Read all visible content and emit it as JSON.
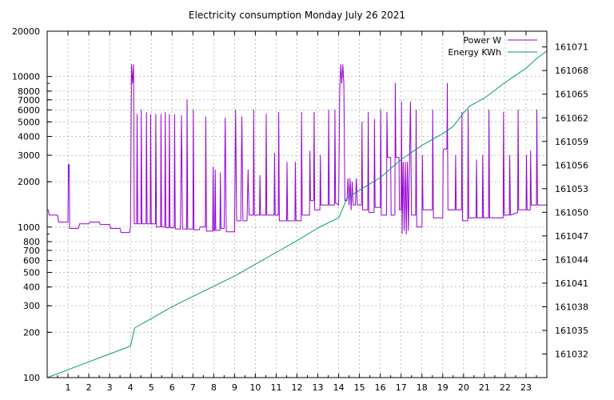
{
  "chart_data": {
    "type": "line",
    "title": "Electricity consumption Monday July 26 2021",
    "xlabel": "",
    "ylabel": "",
    "y2label": "",
    "xlim": [
      0,
      24
    ],
    "ylim": [
      100,
      20000
    ],
    "y_scale": "log",
    "y2lim": [
      161029,
      161073
    ],
    "grid": true,
    "legend_position": "top-right",
    "x_ticks": [
      "1",
      "2",
      "3",
      "4",
      "5",
      "6",
      "7",
      "8",
      "9",
      "10",
      "11",
      "12",
      "13",
      "14",
      "15",
      "16",
      "17",
      "18",
      "19",
      "20",
      "21",
      "22",
      "23"
    ],
    "y_ticks": [
      "100",
      "200",
      "300",
      "400",
      "500",
      "600",
      "700",
      "800",
      "1000",
      "2000",
      "3000",
      "4000",
      "5000",
      "6000",
      "7000",
      "8000",
      "10000",
      "20000"
    ],
    "y2_ticks": [
      "161032",
      "161035",
      "161038",
      "161041",
      "161044",
      "161047",
      "161050",
      "161053",
      "161056",
      "161059",
      "161062",
      "161065",
      "161068",
      "161071"
    ],
    "series": [
      {
        "name": "Power W",
        "color": "#9400d3",
        "axis": "left",
        "points": [
          [
            0.0,
            1300
          ],
          [
            0.05,
            1300
          ],
          [
            0.1,
            1200
          ],
          [
            0.5,
            1200
          ],
          [
            0.55,
            1080
          ],
          [
            1.0,
            1080
          ],
          [
            1.02,
            2600
          ],
          [
            1.06,
            2600
          ],
          [
            1.08,
            980
          ],
          [
            1.5,
            980
          ],
          [
            1.55,
            1050
          ],
          [
            2.0,
            1050
          ],
          [
            2.05,
            1080
          ],
          [
            2.5,
            1080
          ],
          [
            2.55,
            1040
          ],
          [
            3.0,
            1040
          ],
          [
            3.05,
            980
          ],
          [
            3.5,
            980
          ],
          [
            3.55,
            920
          ],
          [
            3.95,
            920
          ],
          [
            4.0,
            1000
          ],
          [
            4.05,
            12000
          ],
          [
            4.1,
            9000
          ],
          [
            4.15,
            12000
          ],
          [
            4.18,
            1050
          ],
          [
            4.3,
            1050
          ],
          [
            4.32,
            5600
          ],
          [
            4.35,
            1050
          ],
          [
            4.5,
            1050
          ],
          [
            4.52,
            6000
          ],
          [
            4.55,
            1050
          ],
          [
            4.75,
            1050
          ],
          [
            4.77,
            5800
          ],
          [
            4.8,
            1050
          ],
          [
            4.95,
            1050
          ],
          [
            4.97,
            5600
          ],
          [
            5.0,
            1050
          ],
          [
            5.2,
            1050
          ],
          [
            5.22,
            5600
          ],
          [
            5.25,
            1000
          ],
          [
            5.45,
            1000
          ],
          [
            5.47,
            5600
          ],
          [
            5.5,
            1000
          ],
          [
            5.65,
            1000
          ],
          [
            5.67,
            5800
          ],
          [
            5.7,
            990
          ],
          [
            5.85,
            990
          ],
          [
            5.87,
            5600
          ],
          [
            5.9,
            990
          ],
          [
            6.1,
            990
          ],
          [
            6.12,
            5600
          ],
          [
            6.15,
            970
          ],
          [
            6.4,
            970
          ],
          [
            6.45,
            5500
          ],
          [
            6.5,
            970
          ],
          [
            6.7,
            970
          ],
          [
            6.72,
            7000
          ],
          [
            6.75,
            970
          ],
          [
            7.0,
            970
          ],
          [
            7.02,
            6000
          ],
          [
            7.05,
            960
          ],
          [
            7.3,
            960
          ],
          [
            7.35,
            1000
          ],
          [
            7.6,
            1000
          ],
          [
            7.62,
            5400
          ],
          [
            7.65,
            940
          ],
          [
            7.95,
            940
          ],
          [
            7.97,
            2500
          ],
          [
            8.0,
            950
          ],
          [
            8.05,
            950
          ],
          [
            8.07,
            2400
          ],
          [
            8.1,
            950
          ],
          [
            8.3,
            950
          ],
          [
            8.32,
            2300
          ],
          [
            8.35,
            980
          ],
          [
            8.5,
            980
          ],
          [
            8.55,
            5300
          ],
          [
            8.6,
            930
          ],
          [
            9.0,
            930
          ],
          [
            9.05,
            6000
          ],
          [
            9.1,
            1100
          ],
          [
            9.3,
            1100
          ],
          [
            9.35,
            5400
          ],
          [
            9.4,
            1100
          ],
          [
            9.6,
            1100
          ],
          [
            9.65,
            2400
          ],
          [
            9.7,
            1200
          ],
          [
            9.9,
            1200
          ],
          [
            9.92,
            6000
          ],
          [
            9.95,
            1200
          ],
          [
            10.2,
            1200
          ],
          [
            10.22,
            2200
          ],
          [
            10.25,
            1200
          ],
          [
            10.5,
            1200
          ],
          [
            10.52,
            5600
          ],
          [
            10.55,
            1200
          ],
          [
            10.9,
            1200
          ],
          [
            10.92,
            3100
          ],
          [
            10.95,
            1200
          ],
          [
            11.1,
            1200
          ],
          [
            11.12,
            5800
          ],
          [
            11.15,
            1100
          ],
          [
            11.5,
            1100
          ],
          [
            11.52,
            2700
          ],
          [
            11.55,
            1100
          ],
          [
            11.9,
            1100
          ],
          [
            11.92,
            2700
          ],
          [
            11.95,
            1100
          ],
          [
            12.2,
            1100
          ],
          [
            12.22,
            5800
          ],
          [
            12.25,
            1200
          ],
          [
            12.6,
            1200
          ],
          [
            12.62,
            3200
          ],
          [
            12.65,
            1500
          ],
          [
            12.8,
            1500
          ],
          [
            12.82,
            5800
          ],
          [
            12.85,
            1300
          ],
          [
            13.1,
            1300
          ],
          [
            13.12,
            3000
          ],
          [
            13.15,
            1400
          ],
          [
            13.5,
            1400
          ],
          [
            13.52,
            6000
          ],
          [
            13.55,
            1400
          ],
          [
            13.8,
            1400
          ],
          [
            13.82,
            6000
          ],
          [
            13.85,
            1450
          ],
          [
            14.0,
            1400
          ],
          [
            14.05,
            8000
          ],
          [
            14.1,
            12000
          ],
          [
            14.15,
            9000
          ],
          [
            14.2,
            12000
          ],
          [
            14.25,
            9000
          ],
          [
            14.3,
            1500
          ],
          [
            14.4,
            1500
          ],
          [
            14.45,
            2100
          ],
          [
            14.5,
            1400
          ],
          [
            14.55,
            2100
          ],
          [
            14.6,
            1300
          ],
          [
            14.65,
            2000
          ],
          [
            14.7,
            1400
          ],
          [
            14.8,
            1400
          ],
          [
            14.85,
            2100
          ],
          [
            14.9,
            1400
          ],
          [
            15.1,
            1400
          ],
          [
            15.12,
            5000
          ],
          [
            15.15,
            1300
          ],
          [
            15.4,
            1300
          ],
          [
            15.42,
            5800
          ],
          [
            15.45,
            1250
          ],
          [
            15.7,
            1250
          ],
          [
            15.72,
            5200
          ],
          [
            15.75,
            1350
          ],
          [
            16.0,
            1350
          ],
          [
            16.02,
            6000
          ],
          [
            16.05,
            1200
          ],
          [
            16.3,
            1200
          ],
          [
            16.32,
            5800
          ],
          [
            16.35,
            2900
          ],
          [
            16.5,
            2900
          ],
          [
            16.52,
            1200
          ],
          [
            16.7,
            1200
          ],
          [
            16.72,
            9000
          ],
          [
            16.75,
            2900
          ],
          [
            16.9,
            2900
          ],
          [
            16.92,
            1300
          ],
          [
            17.0,
            1300
          ],
          [
            17.02,
            6800
          ],
          [
            17.05,
            900
          ],
          [
            17.1,
            2700
          ],
          [
            17.15,
            950
          ],
          [
            17.2,
            2700
          ],
          [
            17.25,
            900
          ],
          [
            17.3,
            2700
          ],
          [
            17.35,
            950
          ],
          [
            17.45,
            6800
          ],
          [
            17.5,
            1200
          ],
          [
            17.7,
            1200
          ],
          [
            17.72,
            6000
          ],
          [
            17.75,
            1000
          ],
          [
            18.0,
            1000
          ],
          [
            18.02,
            3000
          ],
          [
            18.05,
            1300
          ],
          [
            18.5,
            1300
          ],
          [
            18.52,
            6000
          ],
          [
            18.55,
            1150
          ],
          [
            19.0,
            1150
          ],
          [
            19.02,
            3200
          ],
          [
            19.05,
            3300
          ],
          [
            19.2,
            3300
          ],
          [
            19.22,
            9000
          ],
          [
            19.25,
            1300
          ],
          [
            19.6,
            1300
          ],
          [
            19.62,
            3000
          ],
          [
            19.65,
            1300
          ],
          [
            19.9,
            1300
          ],
          [
            19.92,
            5800
          ],
          [
            19.95,
            1100
          ],
          [
            20.2,
            1100
          ],
          [
            20.22,
            6000
          ],
          [
            20.25,
            1150
          ],
          [
            20.6,
            1150
          ],
          [
            20.62,
            2800
          ],
          [
            20.65,
            1150
          ],
          [
            20.9,
            1150
          ],
          [
            20.92,
            3000
          ],
          [
            20.95,
            1150
          ],
          [
            21.2,
            1150
          ],
          [
            21.22,
            6000
          ],
          [
            21.25,
            1150
          ],
          [
            21.9,
            1150
          ],
          [
            21.92,
            5800
          ],
          [
            21.95,
            1200
          ],
          [
            22.2,
            1200
          ],
          [
            22.22,
            3000
          ],
          [
            22.25,
            1200
          ],
          [
            22.6,
            1250
          ],
          [
            22.62,
            6000
          ],
          [
            22.65,
            1300
          ],
          [
            23.0,
            1300
          ],
          [
            23.02,
            3000
          ],
          [
            23.05,
            1300
          ],
          [
            23.2,
            1300
          ],
          [
            23.22,
            3200
          ],
          [
            23.25,
            1400
          ],
          [
            23.5,
            1400
          ],
          [
            23.52,
            6000
          ],
          [
            23.55,
            1400
          ],
          [
            24.0,
            1400
          ]
        ]
      },
      {
        "name": "Energy KWh",
        "color": "#009e73",
        "axis": "right",
        "points": [
          [
            0.0,
            161029.0
          ],
          [
            1.0,
            161030.0
          ],
          [
            2.0,
            161031.0
          ],
          [
            3.0,
            161032.0
          ],
          [
            4.0,
            161033.0
          ],
          [
            4.2,
            161035.3
          ],
          [
            5.0,
            161036.5
          ],
          [
            6.0,
            161038.0
          ],
          [
            7.0,
            161039.3
          ],
          [
            8.0,
            161040.6
          ],
          [
            9.0,
            161041.9
          ],
          [
            10.0,
            161043.4
          ],
          [
            11.0,
            161044.9
          ],
          [
            12.0,
            161046.4
          ],
          [
            13.0,
            161048.0
          ],
          [
            14.0,
            161049.3
          ],
          [
            14.2,
            161050.5
          ],
          [
            14.4,
            161051.8
          ],
          [
            14.5,
            161052.0
          ],
          [
            15.0,
            161052.8
          ],
          [
            16.0,
            161054.4
          ],
          [
            17.0,
            161056.7
          ],
          [
            18.0,
            161058.5
          ],
          [
            19.0,
            161060.0
          ],
          [
            19.5,
            161060.9
          ],
          [
            20.0,
            161062.6
          ],
          [
            20.3,
            161063.5
          ],
          [
            21.0,
            161064.5
          ],
          [
            22.0,
            161066.5
          ],
          [
            23.0,
            161068.3
          ],
          [
            23.5,
            161069.5
          ],
          [
            24.0,
            161070.5
          ]
        ]
      }
    ]
  }
}
